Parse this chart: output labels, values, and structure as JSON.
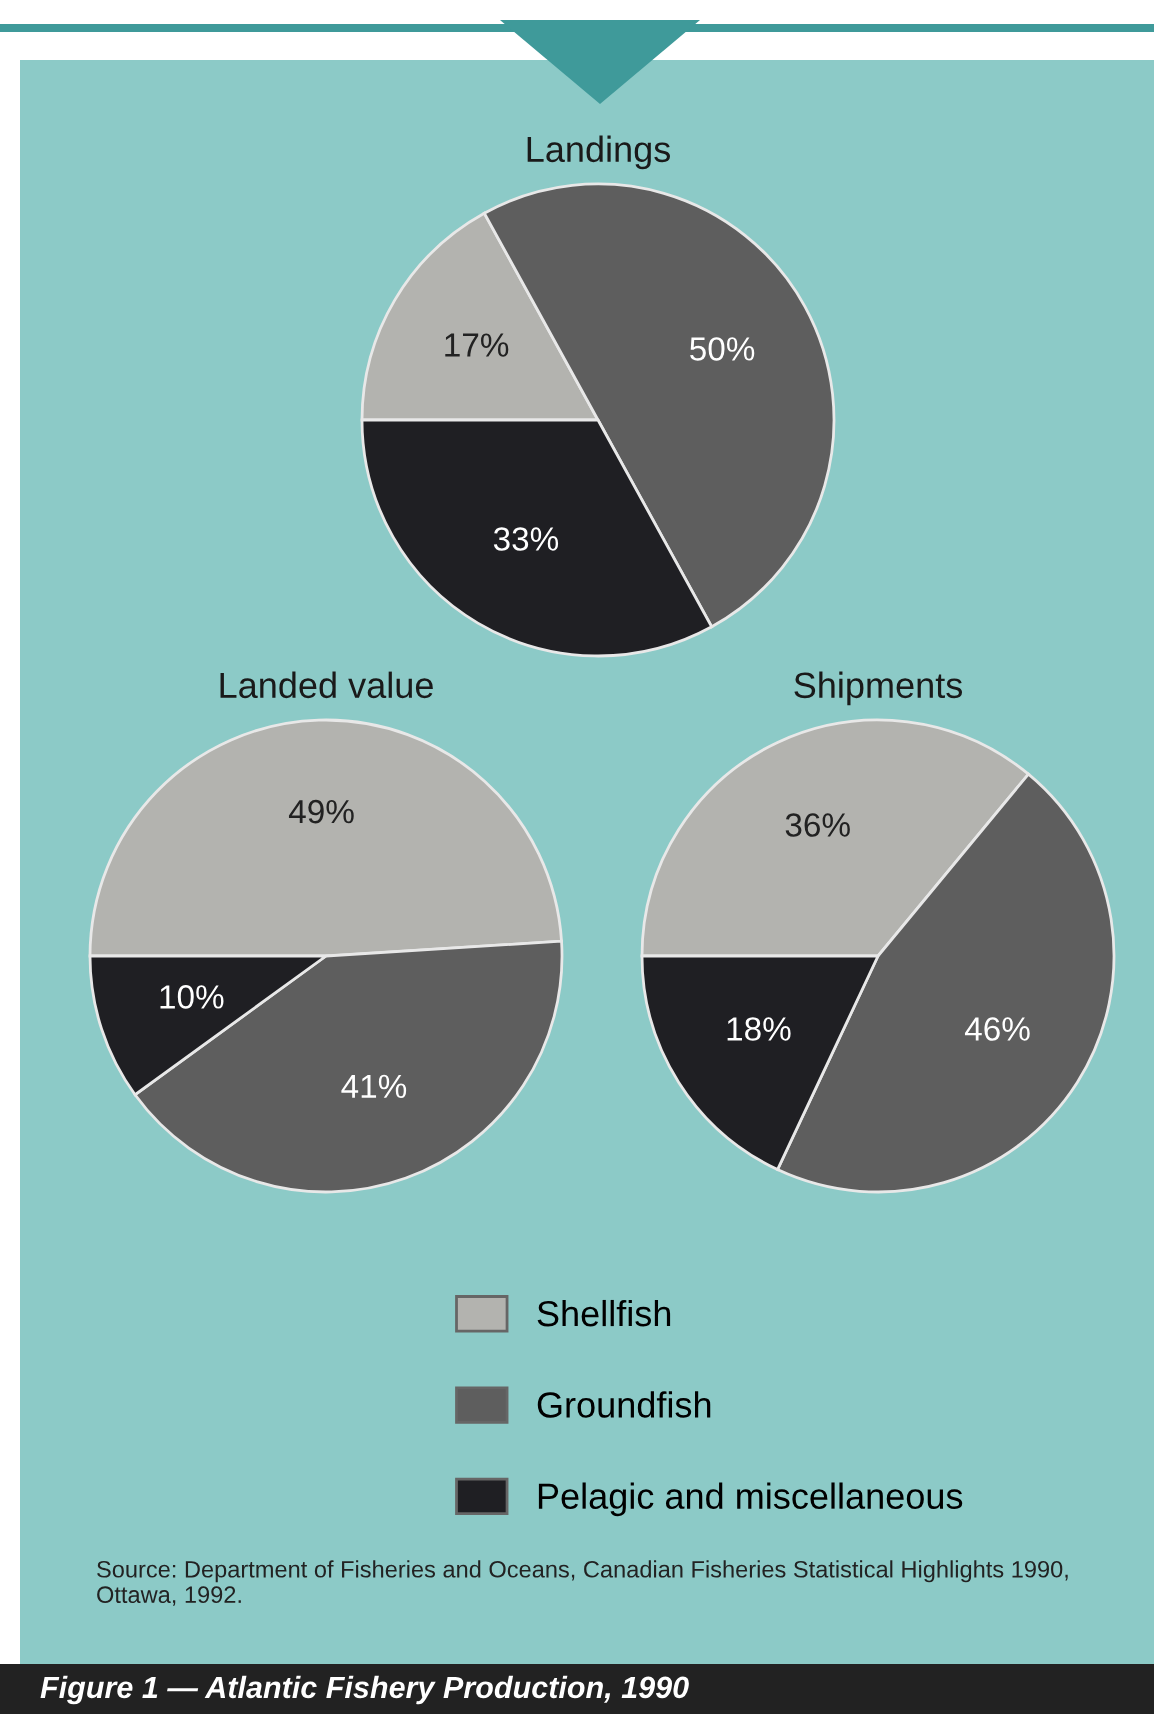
{
  "chart_data": [
    {
      "type": "pie",
      "title": "Landings",
      "categories": [
        "Shellfish",
        "Groundfish",
        "Pelagic and miscellaneous"
      ],
      "values": [
        17,
        50,
        33
      ],
      "value_labels": [
        "17%",
        "50%",
        "33%"
      ],
      "colors": [
        "#b3b3af",
        "#5e5e5e",
        "#1f1f23"
      ],
      "legend": "bottom"
    },
    {
      "type": "pie",
      "title": "Landed value",
      "categories": [
        null,
        null,
        null
      ],
      "values": [
        49,
        41,
        10
      ],
      "value_labels": [
        "49%",
        "41%",
        "10%"
      ],
      "colors": [
        "#b3b3af",
        "#5e5e5e",
        "#1f1f23"
      ]
    },
    {
      "type": "pie",
      "title": "Shipments",
      "categories": [
        null,
        null,
        null
      ],
      "values": [
        36,
        46,
        18
      ],
      "value_labels": [
        "36%",
        "46%",
        "18%"
      ],
      "colors": [
        "#b3b3af",
        "#5e5e5e",
        "#1f1f23"
      ],
      "annotations": [
        "Source: Department of Fisheries and Oceans, Canadian Fisheries Statistical Highlights 1990, Ottawa, 1992.",
        "Figure 1 — Atlantic Fishery Production, 1990"
      ]
    }
  ]
}
